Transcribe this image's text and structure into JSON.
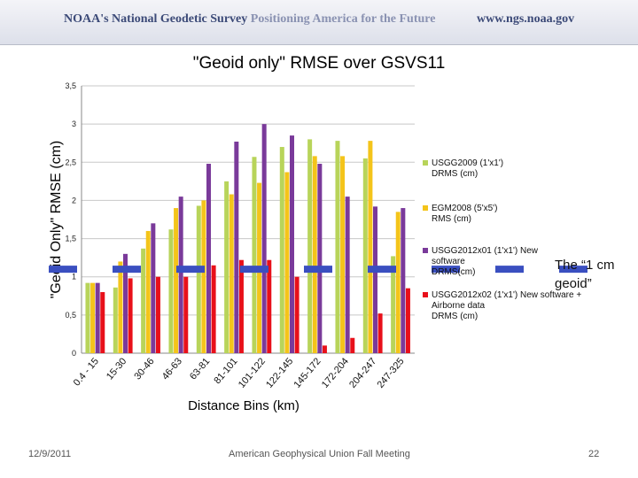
{
  "header": {
    "left_title_1": "NOAA's National Geodetic Survey",
    "left_title_2": "Positioning America for the Future",
    "url": "www.ngs.noaa.gov"
  },
  "footer": {
    "date": "12/9/2011",
    "meeting": "American Geophysical Union Fall Meeting",
    "page": "22"
  },
  "annotation": {
    "line1": "The “1 cm",
    "line2": "geoid”"
  },
  "chart_data": {
    "type": "bar",
    "title": "\"Geoid only\" RMSE over GSVS11",
    "xlabel": "Distance Bins (km)",
    "ylabel": "\"Geoid Only\" RMSE (cm)",
    "ylim": [
      0,
      3.5
    ],
    "yticks": [
      "0",
      "0,5",
      "1",
      "1,5",
      "2",
      "2,5",
      "3",
      "3,5"
    ],
    "categories": [
      "0.4 - 15",
      "15-30",
      "30-46",
      "46-63",
      "63-81",
      "81-101",
      "101-122",
      "122-145",
      "145-172",
      "172-204",
      "204-247",
      "247-325"
    ],
    "series": [
      {
        "name": "USGG2009 (1'x1') DRMS (cm)",
        "color": "#b8d45a",
        "values": [
          0.92,
          0.86,
          1.37,
          1.62,
          1.93,
          2.25,
          2.57,
          2.7,
          2.8,
          2.78,
          2.55,
          1.27
        ]
      },
      {
        "name": "EGM2008 (5'x5') DRMS (cm)",
        "color": "#f4c41a",
        "values": [
          0.92,
          1.2,
          1.6,
          1.9,
          2.0,
          2.08,
          2.23,
          2.37,
          2.58,
          2.58,
          2.78,
          1.85
        ]
      },
      {
        "name": "USGG2012x01 (1'x1') New software DRMS(cm)",
        "color": "#7a3a9a",
        "values": [
          0.92,
          1.3,
          1.7,
          2.05,
          2.48,
          2.77,
          3.0,
          2.85,
          2.48,
          2.05,
          1.92,
          1.9
        ]
      },
      {
        "name": "USGG2012x02 (1'x1') New software + Airborne data DRMS (cm)",
        "color": "#e8101a",
        "values": [
          0.8,
          0.98,
          1.0,
          1.0,
          1.15,
          1.22,
          1.22,
          1.0,
          0.1,
          0.2,
          0.52,
          0.85
        ]
      }
    ],
    "legend_position": "right",
    "reference_line": {
      "label": "1 cm geoid",
      "value": 1.1,
      "color": "#3a4fc0"
    }
  }
}
